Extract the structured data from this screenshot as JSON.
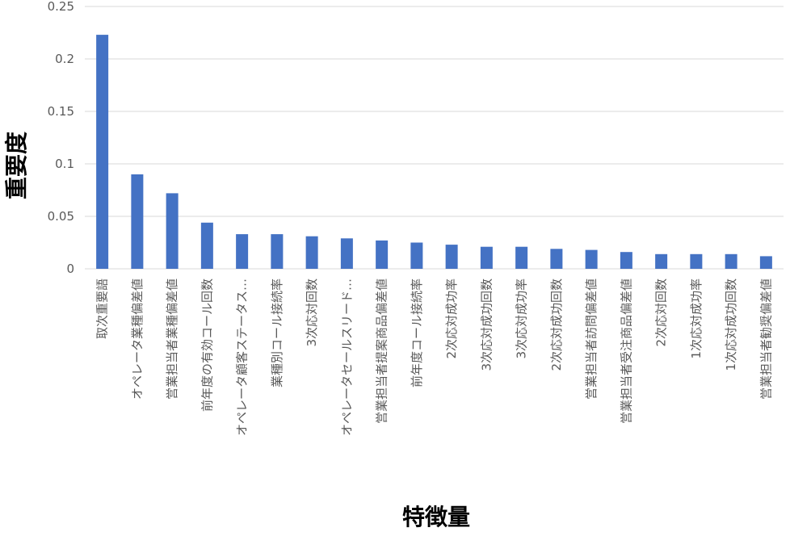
{
  "chart_data": {
    "type": "bar",
    "title": "",
    "xlabel": "特徴量",
    "ylabel": "重要度",
    "ylim": [
      0,
      0.25
    ],
    "yticks": [
      "0",
      "0.05",
      "0.1",
      "0.15",
      "0.2",
      "0.25"
    ],
    "grid": true,
    "legend": "none",
    "bar_color": "#4472c4",
    "categories": [
      "取次重要語",
      "オペレータ業種偏差値",
      "営業担当者業種偏差値",
      "前年度の有効コール回数",
      "オペレータ顧客ステータス…",
      "業種別コール接続率",
      "3次応対回数",
      "オペレータセールスリード…",
      "営業担当者提案商品偏差値",
      "前年度コール接続率",
      "2次応対成功率",
      "3次応対成功回数",
      "3次応対成功率",
      "2次応対成功回数",
      "営業担当者訪問偏差値",
      "営業担当者受注商品偏差値",
      "2次応対回数",
      "1次応対成功率",
      "1次応対成功回数",
      "営業担当者勧奨偏差値"
    ],
    "values": [
      0.223,
      0.09,
      0.072,
      0.044,
      0.033,
      0.033,
      0.031,
      0.029,
      0.027,
      0.025,
      0.023,
      0.021,
      0.021,
      0.019,
      0.018,
      0.016,
      0.014,
      0.014,
      0.014,
      0.012
    ]
  }
}
